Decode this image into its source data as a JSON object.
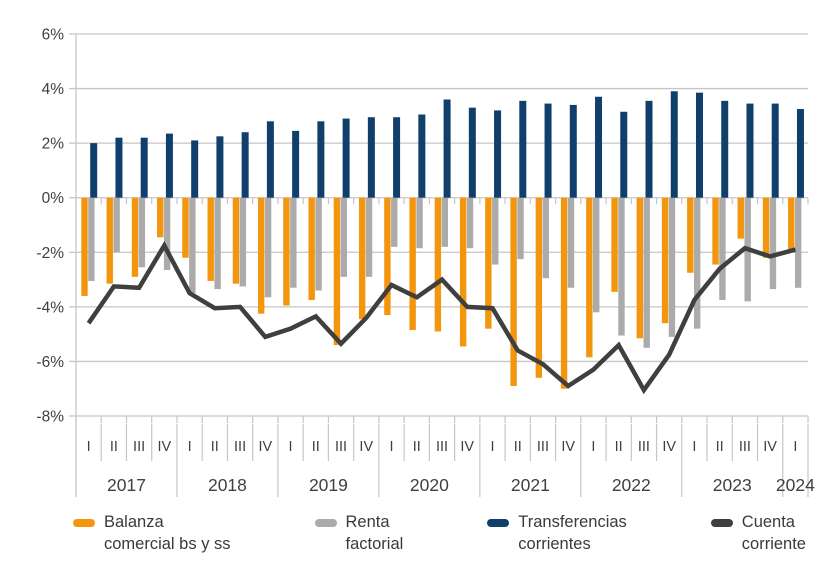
{
  "chart_data": {
    "type": "bar",
    "subtype": "grouped bars with line overlay (quarterly balance of payments, % of GDP)",
    "title": "",
    "xlabel": "",
    "ylabel": "",
    "ylim": [
      -8,
      6
    ],
    "y_tick_step": 2,
    "y_tick_labels": [
      "6%",
      "4%",
      "2%",
      "0%",
      "-2%",
      "-4%",
      "-6%",
      "-8%"
    ],
    "grid": true,
    "legend_position": "bottom",
    "quarter_labels": [
      "I",
      "II",
      "III",
      "IV",
      "I",
      "II",
      "III",
      "IV",
      "I",
      "II",
      "III",
      "IV",
      "I",
      "II",
      "III",
      "IV",
      "I",
      "II",
      "III",
      "IV",
      "I",
      "II",
      "III",
      "IV",
      "I",
      "II",
      "III",
      "IV",
      "I"
    ],
    "years": [
      {
        "label": "2017",
        "quarters": 4
      },
      {
        "label": "2018",
        "quarters": 4
      },
      {
        "label": "2019",
        "quarters": 4
      },
      {
        "label": "2020",
        "quarters": 4
      },
      {
        "label": "2021",
        "quarters": 4
      },
      {
        "label": "2022",
        "quarters": 4
      },
      {
        "label": "2023",
        "quarters": 4
      },
      {
        "label": "2024",
        "quarters": 1
      }
    ],
    "series": [
      {
        "name": "Balanza comercial bs y ss",
        "kind": "bar",
        "color": "#F3960D",
        "values": [
          -3.6,
          -3.15,
          -2.9,
          -1.45,
          -2.2,
          -3.05,
          -3.15,
          -4.25,
          -3.95,
          -3.75,
          -5.4,
          -4.45,
          -4.3,
          -4.85,
          -4.9,
          -5.45,
          -4.8,
          -6.9,
          -6.6,
          -7.0,
          -5.85,
          -3.45,
          -5.15,
          -4.6,
          -2.75,
          -2.45,
          -1.5,
          -2.2,
          -1.95
        ]
      },
      {
        "name": "Renta factorial",
        "kind": "bar",
        "color": "#ABABAB",
        "values": [
          -3.05,
          -2.0,
          -2.55,
          -2.65,
          -3.5,
          -3.35,
          -3.25,
          -3.65,
          -3.3,
          -3.4,
          -2.9,
          -2.9,
          -1.8,
          -1.85,
          -1.8,
          -1.85,
          -2.45,
          -2.25,
          -2.95,
          -3.3,
          -4.2,
          -5.05,
          -5.5,
          -5.1,
          -4.8,
          -3.75,
          -3.8,
          -3.35,
          -3.3
        ]
      },
      {
        "name": "Transferencias corrientes",
        "kind": "bar",
        "color": "#113F6B",
        "values": [
          2.0,
          2.2,
          2.2,
          2.35,
          2.1,
          2.25,
          2.4,
          2.8,
          2.45,
          2.8,
          2.9,
          2.95,
          2.95,
          3.05,
          3.6,
          3.3,
          3.2,
          3.55,
          3.45,
          3.4,
          3.7,
          3.15,
          3.55,
          3.9,
          3.85,
          3.55,
          3.45,
          3.45,
          3.25
        ]
      },
      {
        "name": "Cuenta corriente",
        "kind": "line",
        "color": "#3F3F3F",
        "values": [
          -4.6,
          -3.25,
          -3.3,
          -1.75,
          -3.5,
          -4.05,
          -4.0,
          -5.1,
          -4.8,
          -4.35,
          -5.35,
          -4.4,
          -3.2,
          -3.65,
          -3.0,
          -4.0,
          -4.05,
          -5.6,
          -6.1,
          -6.9,
          -6.3,
          -5.4,
          -7.05,
          -5.75,
          -3.75,
          -2.6,
          -1.85,
          -2.15,
          -1.9
        ]
      }
    ],
    "legend_items": [
      {
        "line1": "Balanza",
        "line2": "comercial bs y ss"
      },
      {
        "line1": "Renta",
        "line2": "factorial"
      },
      {
        "line1": "Transferencias",
        "line2": "corrientes"
      },
      {
        "line1": "Cuenta",
        "line2": "corriente"
      }
    ],
    "colors": {
      "gridline": "#C6C6C6",
      "axis_text": "#404040"
    }
  }
}
